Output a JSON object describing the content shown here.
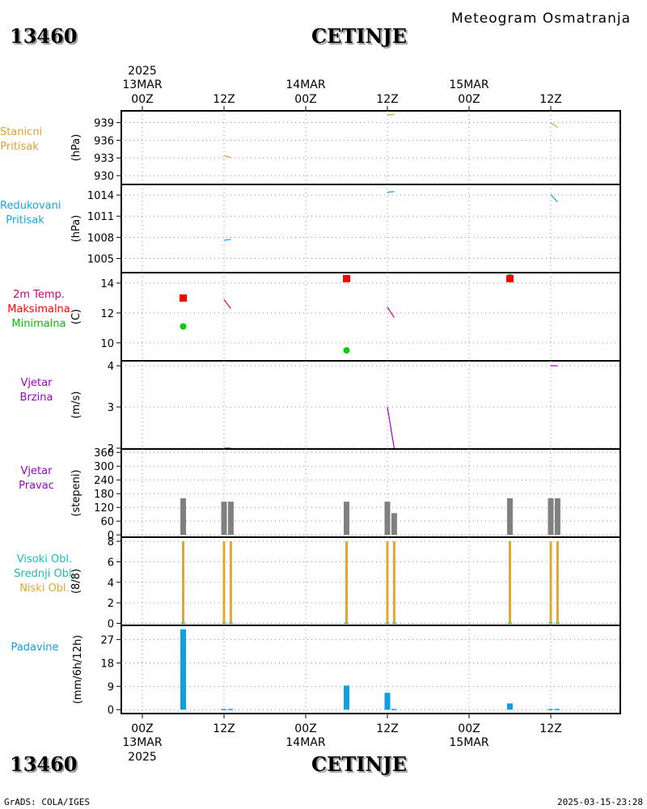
{
  "header": {
    "station_id": "13460",
    "station_name": "CETINJE",
    "chart_title": "Meteogram Osmatranja"
  },
  "footer": {
    "credit": "GrADS: COLA/IGES",
    "timestamp": "2025-03-15-23:28"
  },
  "time_axis": {
    "year": "2025",
    "ticks": [
      {
        "day": "13MAR",
        "hour": "00Z"
      },
      {
        "day": "",
        "hour": "12Z"
      },
      {
        "day": "14MAR",
        "hour": "00Z"
      },
      {
        "day": "",
        "hour": "12Z"
      },
      {
        "day": "15MAR",
        "hour": "00Z"
      },
      {
        "day": "",
        "hour": "12Z"
      }
    ]
  },
  "colors": {
    "station_pressure": "#e0a030",
    "reduced_pressure": "#18a8d8",
    "temp": "#d0007a",
    "tmax": "#ff0000",
    "tmin": "#00d000",
    "wind": "#a000c8",
    "wind_dir_bar": "#808080",
    "clouds_high": "#18c0c0",
    "clouds_mid": "#18c098",
    "clouds_low": "#e0a830",
    "precip": "#10a0e0",
    "grid": "#909090"
  },
  "chart_data": [
    {
      "type": "line",
      "panel": "station_pressure",
      "labels": [
        "Stanicni",
        "Pritisak"
      ],
      "ylabel": "(hPa)",
      "ylim": [
        928.5,
        941
      ],
      "yticks": [
        930,
        933,
        936,
        939
      ],
      "x_unit": "hours since 13MAR 00Z",
      "segments": [
        {
          "x": [
            12,
            13
          ],
          "y": [
            933.4,
            933.1
          ]
        },
        {
          "x": [
            36,
            37
          ],
          "y": [
            940.3,
            940.4
          ]
        },
        {
          "x": [
            60,
            61
          ],
          "y": [
            939.0,
            938.2
          ]
        }
      ]
    },
    {
      "type": "line",
      "panel": "reduced_pressure",
      "labels": [
        "Redukovani",
        "Pritisak"
      ],
      "ylabel": "(hPa)",
      "ylim": [
        1003,
        1015.5
      ],
      "yticks": [
        1005,
        1008,
        1011,
        1014
      ],
      "segments": [
        {
          "x": [
            12,
            13
          ],
          "y": [
            1007.6,
            1007.7
          ]
        },
        {
          "x": [
            36,
            37
          ],
          "y": [
            1014.4,
            1014.5
          ]
        },
        {
          "x": [
            60,
            61
          ],
          "y": [
            1014.1,
            1013.0
          ]
        }
      ]
    },
    {
      "type": "line",
      "panel": "temperature",
      "labels": [
        "2m Temp.",
        "Maksimalna",
        "Minimalna"
      ],
      "ylabel": "(C)",
      "ylim": [
        8.8,
        14.7
      ],
      "yticks": [
        10,
        12,
        14
      ],
      "segments": [
        {
          "x": [
            12,
            13
          ],
          "y": [
            12.9,
            12.3
          ]
        },
        {
          "x": [
            36,
            37
          ],
          "y": [
            12.4,
            11.7
          ]
        }
      ],
      "tmax": [
        {
          "x": 6,
          "y": 13.0
        },
        {
          "x": 30,
          "y": 14.3
        },
        {
          "x": 54,
          "y": 14.3
        }
      ],
      "tmin": [
        {
          "x": 6,
          "y": 11.1
        },
        {
          "x": 30,
          "y": 9.5
        },
        {
          "x": 54,
          "y": 14.4
        }
      ]
    },
    {
      "type": "line",
      "panel": "wind_speed",
      "labels": [
        "Vjetar",
        "Brzina"
      ],
      "ylabel": "(m/s)",
      "ylim": [
        1.98,
        4.12
      ],
      "yticks": [
        2,
        3,
        4
      ],
      "segments": [
        {
          "x": [
            12,
            13
          ],
          "y": [
            2.0,
            2.0
          ]
        },
        {
          "x": [
            36,
            37
          ],
          "y": [
            3.0,
            2.0
          ]
        },
        {
          "x": [
            60,
            61
          ],
          "y": [
            4.0,
            4.0
          ]
        }
      ]
    },
    {
      "type": "bar",
      "panel": "wind_direction",
      "labels": [
        "Vjetar",
        "Pravac"
      ],
      "ylabel": "(stepeni)",
      "ylim": [
        -10,
        375
      ],
      "yticks": [
        0,
        60,
        120,
        180,
        240,
        300,
        360
      ],
      "bars": [
        {
          "x": 6,
          "value": 160
        },
        {
          "x": 12,
          "value": 145
        },
        {
          "x": 13,
          "value": 145
        },
        {
          "x": 30,
          "value": 145
        },
        {
          "x": 36,
          "value": 145
        },
        {
          "x": 37,
          "value": 95
        },
        {
          "x": 54,
          "value": 160
        },
        {
          "x": 60,
          "value": 160
        },
        {
          "x": 61,
          "value": 160
        }
      ]
    },
    {
      "type": "bar",
      "panel": "cloud_cover",
      "labels": [
        "Visoki Obl.",
        "Srednji Obl.",
        "Niski Obl."
      ],
      "ylabel": "(8/8)",
      "ylim": [
        -0.2,
        8.4
      ],
      "yticks": [
        0,
        2,
        4,
        6,
        8
      ],
      "bars": [
        {
          "x": 6,
          "value": 8
        },
        {
          "x": 12,
          "value": 8
        },
        {
          "x": 13,
          "value": 8
        },
        {
          "x": 30,
          "value": 8
        },
        {
          "x": 36,
          "value": 8
        },
        {
          "x": 37,
          "value": 8
        },
        {
          "x": 54,
          "value": 8
        },
        {
          "x": 60,
          "value": 8
        },
        {
          "x": 61,
          "value": 8
        }
      ]
    },
    {
      "type": "bar",
      "panel": "precipitation",
      "labels": [
        "Padavine"
      ],
      "ylabel": "(mm/6h/12h)",
      "ylim": [
        -1.5,
        32.5
      ],
      "yticks": [
        0,
        9,
        18,
        27
      ],
      "bars": [
        {
          "x": 6,
          "value": 31
        },
        {
          "x": 12,
          "value": 0.3
        },
        {
          "x": 13,
          "value": 0.3
        },
        {
          "x": 30,
          "value": 9.3
        },
        {
          "x": 36,
          "value": 6.5
        },
        {
          "x": 37,
          "value": 0.3
        },
        {
          "x": 54,
          "value": 2.4
        },
        {
          "x": 60,
          "value": 0.3
        },
        {
          "x": 61,
          "value": 0.3
        }
      ]
    }
  ]
}
